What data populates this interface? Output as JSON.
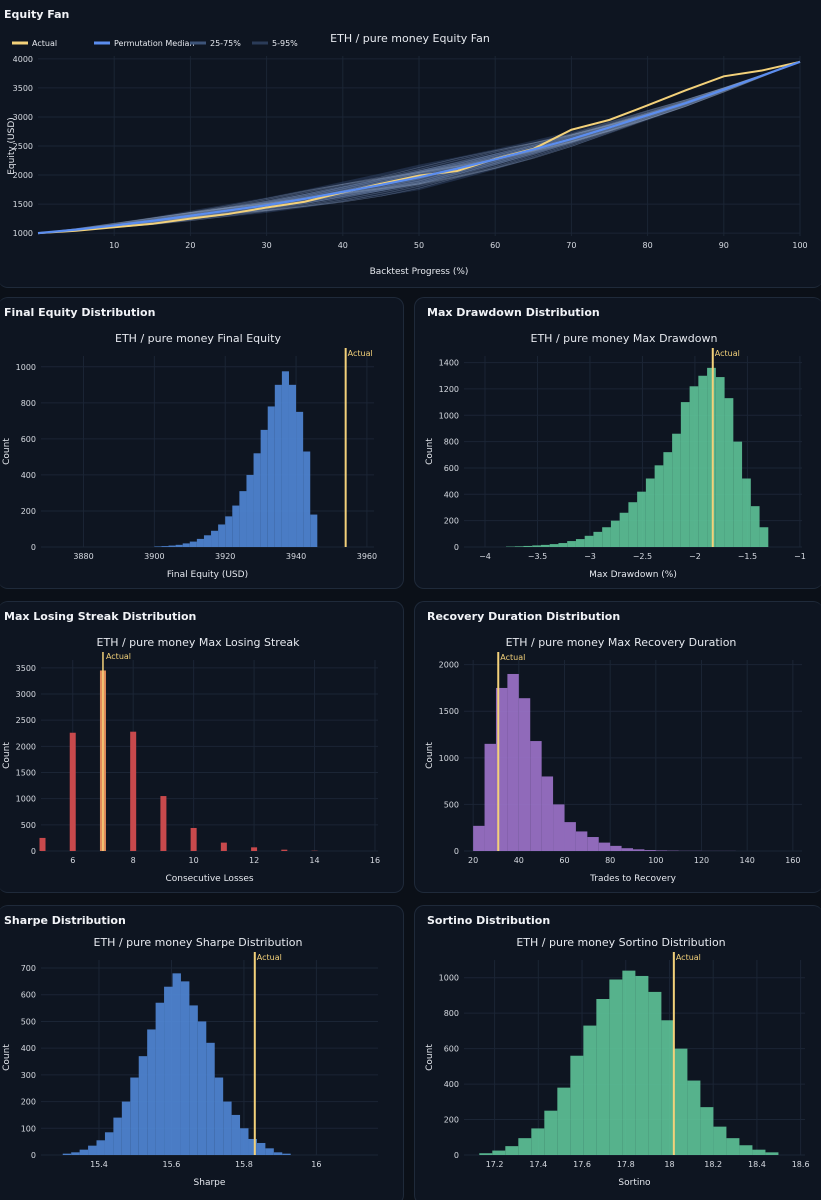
{
  "colors": {
    "actual": "#f3d17a",
    "median": "#5b8def",
    "blue": "#4f86d4",
    "green": "#5cc096",
    "red": "#c8494c",
    "purple": "#9b72c8",
    "grid": "#1b2535",
    "tick": "#d7dbe2"
  },
  "panels": {
    "fan": {
      "title": "Equity Fan"
    },
    "final_equity": {
      "title": "Final Equity Distribution"
    },
    "max_drawdown": {
      "title": "Max Drawdown Distribution"
    },
    "losing_streak": {
      "title": "Max Losing Streak Distribution"
    },
    "recovery": {
      "title": "Recovery Duration Distribution"
    },
    "sharpe": {
      "title": "Sharpe Distribution"
    },
    "sortino": {
      "title": "Sortino Distribution"
    }
  },
  "chart_data": [
    {
      "id": "fan",
      "type": "line",
      "title": "ETH / pure money Equity Fan",
      "xlabel": "Backtest Progress (%)",
      "ylabel": "Equity (USD)",
      "xlim": [
        0,
        100
      ],
      "ylim": [
        950,
        4050
      ],
      "xticks": [
        10,
        20,
        30,
        40,
        50,
        60,
        70,
        80,
        90,
        100
      ],
      "yticks": [
        1000,
        1500,
        2000,
        2500,
        3000,
        3500,
        4000
      ],
      "legend": [
        "Actual",
        "Permutation Median",
        "25-75%",
        "5-95%"
      ],
      "x": [
        0,
        5,
        10,
        15,
        20,
        25,
        30,
        35,
        40,
        45,
        50,
        55,
        60,
        65,
        70,
        75,
        80,
        85,
        90,
        95,
        100
      ],
      "series": [
        {
          "name": "Actual",
          "values": [
            1000,
            1040,
            1100,
            1160,
            1250,
            1330,
            1440,
            1540,
            1700,
            1850,
            1990,
            2070,
            2280,
            2450,
            2780,
            2950,
            3200,
            3460,
            3700,
            3800,
            3950
          ]
        },
        {
          "name": "Permutation Median",
          "values": [
            1000,
            1060,
            1130,
            1210,
            1300,
            1390,
            1480,
            1590,
            1710,
            1830,
            1960,
            2110,
            2270,
            2440,
            2620,
            2820,
            3030,
            3240,
            3470,
            3710,
            3950
          ]
        }
      ]
    },
    {
      "id": "final_equity",
      "type": "bar",
      "title": "ETH / pure money Final Equity",
      "xlabel": "Final Equity (USD)",
      "ylabel": "Count",
      "xlim": [
        3868,
        3962
      ],
      "ylim": [
        0,
        1060
      ],
      "xticks": [
        3880,
        3900,
        3920,
        3940,
        3960
      ],
      "yticks": [
        0,
        200,
        400,
        600,
        800,
        1000
      ],
      "bin_start": 3900,
      "bin_width": 2,
      "values": [
        3,
        5,
        8,
        12,
        20,
        30,
        45,
        65,
        90,
        125,
        170,
        230,
        310,
        400,
        520,
        650,
        780,
        900,
        975,
        900,
        750,
        530,
        180
      ],
      "actual": 3954,
      "actual_label": "Actual"
    },
    {
      "id": "max_drawdown",
      "type": "bar",
      "title": "ETH / pure money Max Drawdown",
      "xlabel": "Max Drawdown (%)",
      "ylabel": "Count",
      "xlim": [
        -4.2,
        -0.98
      ],
      "ylim": [
        0,
        1450
      ],
      "xticks": [
        -4,
        -3.5,
        -3,
        -2.5,
        -2,
        -1.5,
        -1
      ],
      "xtick_labels": [
        "−4",
        "−3.5",
        "−3",
        "−2.5",
        "−2",
        "−1.5",
        "−1"
      ],
      "yticks": [
        0,
        200,
        400,
        600,
        800,
        1000,
        1200,
        1400
      ],
      "bin_start": -3.8,
      "bin_width": 0.0833,
      "values": [
        3,
        5,
        8,
        12,
        16,
        22,
        30,
        45,
        60,
        85,
        115,
        150,
        200,
        260,
        340,
        420,
        520,
        620,
        720,
        860,
        1100,
        1220,
        1300,
        1360,
        1290,
        1130,
        800,
        520,
        310,
        150
      ],
      "actual": -1.83,
      "actual_label": "Actual"
    },
    {
      "id": "losing_streak",
      "type": "bar",
      "title": "ETH / pure money Max Losing Streak",
      "xlabel": "Consecutive Losses",
      "ylabel": "Count",
      "xlim": [
        4.95,
        16.1
      ],
      "ylim": [
        0,
        3650
      ],
      "xticks": [
        6,
        8,
        10,
        12,
        14,
        16
      ],
      "yticks": [
        0,
        500,
        1000,
        1500,
        2000,
        2500,
        3000,
        3500
      ],
      "categories": [
        5,
        6,
        7,
        8,
        9,
        10,
        11,
        12,
        13,
        14
      ],
      "values": [
        250,
        2260,
        3450,
        2280,
        1050,
        440,
        160,
        70,
        25,
        5
      ],
      "actual": 7,
      "actual_label": "Actual"
    },
    {
      "id": "recovery",
      "type": "bar",
      "title": "ETH / pure money Max Recovery Duration",
      "xlabel": "Trades to Recovery",
      "ylabel": "Count",
      "xlim": [
        16,
        164
      ],
      "ylim": [
        0,
        2050
      ],
      "xticks": [
        20,
        40,
        60,
        80,
        100,
        120,
        140,
        160
      ],
      "yticks": [
        0,
        500,
        1000,
        1500,
        2000
      ],
      "bin_start": 20,
      "bin_width": 5,
      "values": [
        270,
        1150,
        1750,
        1900,
        1640,
        1180,
        800,
        500,
        310,
        210,
        150,
        90,
        55,
        30,
        18,
        10,
        6,
        4,
        2,
        2,
        1,
        1,
        1
      ],
      "actual": 31,
      "actual_label": "Actual"
    },
    {
      "id": "sharpe",
      "type": "bar",
      "title": "ETH / pure money Sharpe Distribution",
      "xlabel": "Sharpe",
      "ylabel": "Count",
      "xlim": [
        15.24,
        16.17
      ],
      "ylim": [
        0,
        730
      ],
      "xticks": [
        15.4,
        15.6,
        15.8,
        16
      ],
      "yticks": [
        0,
        100,
        200,
        300,
        400,
        500,
        600,
        700
      ],
      "bin_start": 15.3,
      "bin_width": 0.0233,
      "values": [
        5,
        10,
        20,
        35,
        55,
        85,
        140,
        200,
        290,
        370,
        470,
        570,
        630,
        680,
        650,
        560,
        500,
        420,
        290,
        200,
        150,
        100,
        60,
        45,
        25,
        10,
        5
      ],
      "actual": 15.83,
      "actual_label": "Actual"
    },
    {
      "id": "sortino",
      "type": "bar",
      "title": "ETH / pure money Sortino Distribution",
      "xlabel": "Sortino",
      "ylabel": "Count",
      "xlim": [
        17.06,
        18.62
      ],
      "ylim": [
        0,
        1100
      ],
      "xticks": [
        17.2,
        17.4,
        17.6,
        17.8,
        18,
        18.2,
        18.4,
        18.6
      ],
      "yticks": [
        0,
        200,
        400,
        600,
        800,
        1000
      ],
      "bin_start": 17.13,
      "bin_width": 0.0595,
      "values": [
        10,
        25,
        50,
        95,
        150,
        250,
        380,
        560,
        730,
        880,
        990,
        1040,
        1010,
        920,
        760,
        600,
        420,
        270,
        160,
        95,
        55,
        30,
        15
      ],
      "actual": 18.02,
      "actual_label": "Actual"
    }
  ]
}
